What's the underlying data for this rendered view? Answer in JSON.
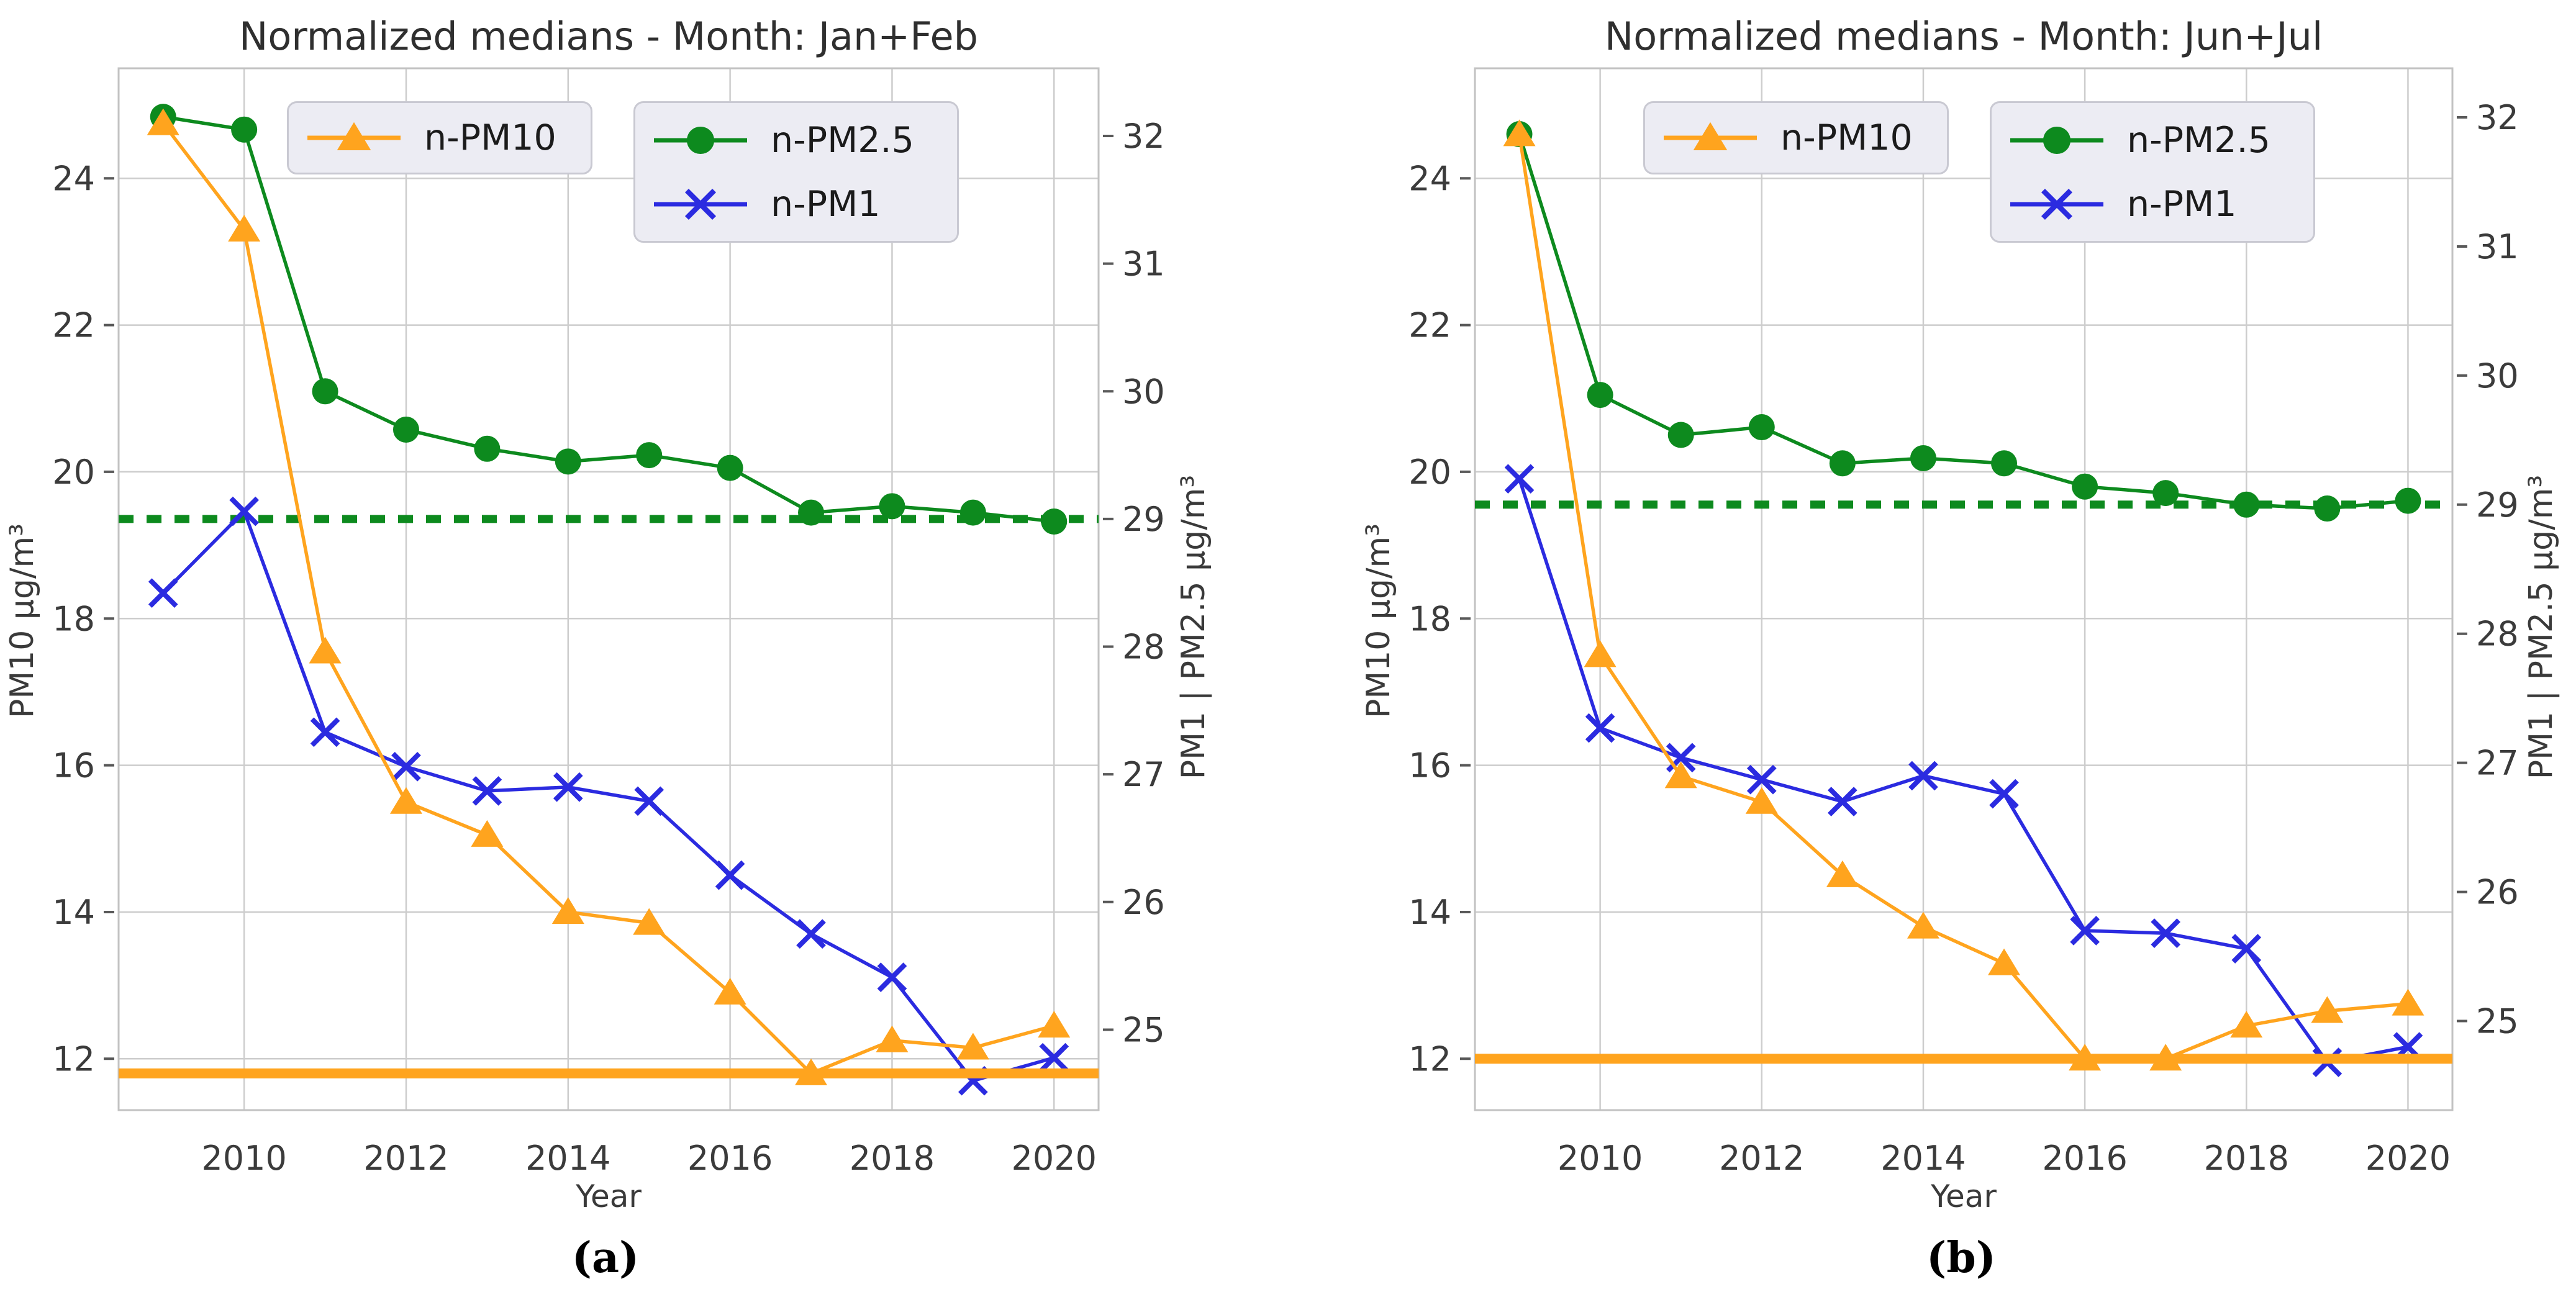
{
  "page": {
    "background": "#ffffff",
    "figure_type": "dual line chart, normalized PM medians by year"
  },
  "chart_data": [
    {
      "id": "a",
      "type": "line",
      "title": "Normalized medians - Month: Jan+Feb",
      "caption": "(a)",
      "xlabel": "Year",
      "ylabel_left": "PM10  µg/m³",
      "ylabel_right": "PM1 | PM2.5  µg/m³",
      "grid": true,
      "legend_position": "upper left, two boxes",
      "x_axis": {
        "min": 2008.45,
        "max": 2020.55,
        "ticks": [
          2010,
          2012,
          2014,
          2016,
          2018,
          2020
        ]
      },
      "y_left": {
        "min": 11.3,
        "max": 25.5,
        "ticks": [
          12,
          14,
          16,
          18,
          20,
          22,
          24
        ]
      },
      "y_right": {
        "min": 24.37,
        "max": 32.53,
        "ticks": [
          25,
          26,
          27,
          28,
          29,
          30,
          31,
          32
        ]
      },
      "years": [
        2009,
        2010,
        2011,
        2012,
        2013,
        2014,
        2015,
        2016,
        2017,
        2018,
        2019,
        2020
      ],
      "series": [
        {
          "name": "n-PM10",
          "axis": "left",
          "color": "#FFA41E",
          "marker": "triangle",
          "values": [
            24.75,
            23.3,
            17.55,
            15.5,
            15.05,
            14.0,
            13.85,
            12.9,
            11.8,
            12.25,
            12.15,
            12.45
          ]
        },
        {
          "name": "n-PM2.5",
          "axis": "right",
          "color": "#0D8A1E",
          "marker": "circle",
          "values": [
            32.15,
            32.05,
            30.0,
            29.7,
            29.55,
            29.45,
            29.5,
            29.4,
            29.05,
            29.1,
            29.05,
            28.98
          ]
        },
        {
          "name": "n-PM1",
          "axis": "right",
          "color": "#2B2BE0",
          "marker": "x",
          "values": [
            28.42,
            29.06,
            27.33,
            27.06,
            26.87,
            26.9,
            26.79,
            26.21,
            25.75,
            25.41,
            24.6,
            24.78
          ]
        }
      ],
      "reference_lines": [
        {
          "name": "PM10 baseline",
          "axis": "left",
          "value": 11.8,
          "color": "#FFA41E",
          "style": "solid"
        },
        {
          "name": "PM2.5 | PM1 baseline",
          "axis": "right",
          "value": 29.0,
          "color": "#0D8A1E",
          "style": "dotted"
        }
      ]
    },
    {
      "id": "b",
      "type": "line",
      "title": "Normalized medians - Month: Jun+Jul",
      "caption": "(b)",
      "xlabel": "Year",
      "ylabel_left": "PM10  µg/m³",
      "ylabel_right": "PM1 | PM2.5  µg/m³",
      "grid": true,
      "legend_position": "upper left, two boxes",
      "x_axis": {
        "min": 2008.45,
        "max": 2020.55,
        "ticks": [
          2010,
          2012,
          2014,
          2016,
          2018,
          2020
        ]
      },
      "y_left": {
        "min": 11.3,
        "max": 25.5,
        "ticks": [
          12,
          14,
          16,
          18,
          20,
          22,
          24
        ]
      },
      "y_right": {
        "min": 24.31,
        "max": 32.38,
        "ticks": [
          25,
          26,
          27,
          28,
          29,
          30,
          31,
          32
        ]
      },
      "years": [
        2009,
        2010,
        2011,
        2012,
        2013,
        2014,
        2015,
        2016,
        2017,
        2018,
        2019,
        2020
      ],
      "series": [
        {
          "name": "n-PM10",
          "axis": "left",
          "color": "#FFA41E",
          "marker": "triangle",
          "values": [
            24.6,
            17.5,
            15.85,
            15.5,
            14.5,
            13.8,
            13.3,
            12.0,
            12.0,
            12.45,
            12.65,
            12.75
          ]
        },
        {
          "name": "n-PM2.5",
          "axis": "right",
          "color": "#0D8A1E",
          "marker": "circle",
          "values": [
            31.87,
            29.85,
            29.54,
            29.6,
            29.32,
            29.36,
            29.32,
            29.14,
            29.09,
            29.0,
            28.97,
            29.03
          ]
        },
        {
          "name": "n-PM1",
          "axis": "right",
          "color": "#2B2BE0",
          "marker": "x",
          "values": [
            29.2,
            27.27,
            27.04,
            26.87,
            26.7,
            26.9,
            26.76,
            25.7,
            25.68,
            25.56,
            24.68,
            24.8
          ]
        }
      ],
      "reference_lines": [
        {
          "name": "PM10 baseline",
          "axis": "left",
          "value": 12.0,
          "color": "#FFA41E",
          "style": "solid"
        },
        {
          "name": "PM2.5 | PM1 baseline",
          "axis": "right",
          "value": 29.0,
          "color": "#0D8A1E",
          "style": "dotted"
        }
      ]
    }
  ]
}
